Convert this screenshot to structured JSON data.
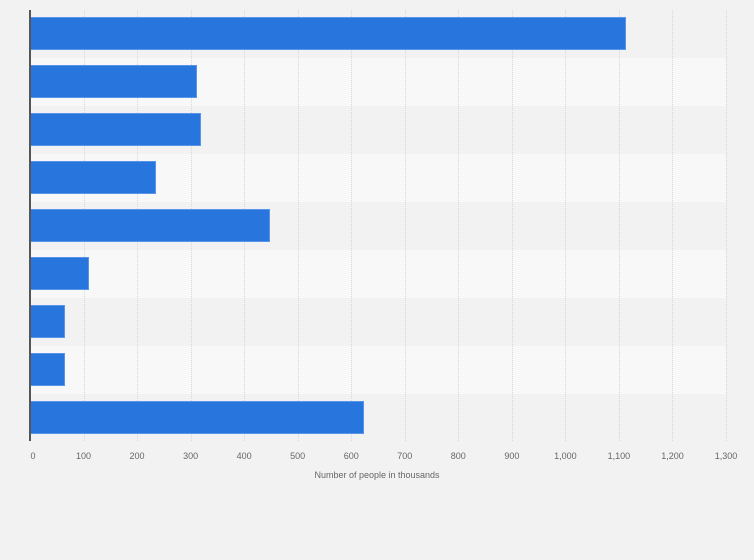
{
  "chart_data": {
    "type": "bar",
    "orientation": "horizontal",
    "title": "",
    "xlabel": "Number of people in thousands",
    "ylabel": "",
    "categories": [
      "",
      "",
      "",
      "",
      "",
      "",
      "",
      "",
      ""
    ],
    "values": [
      1113,
      312,
      319,
      236,
      449,
      110,
      66,
      65,
      624
    ],
    "xlim": [
      0,
      1300
    ],
    "xticks": [
      0,
      100,
      200,
      300,
      400,
      500,
      600,
      700,
      800,
      900,
      1000,
      1100,
      1200,
      1300
    ],
    "xtick_labels": [
      "0",
      "100",
      "200",
      "300",
      "400",
      "500",
      "600",
      "700",
      "800",
      "900",
      "1,000",
      "1,100",
      "1,200",
      "1,300"
    ],
    "grid": true,
    "legend": null,
    "bar_color": "#2876dd"
  },
  "axis": {
    "xlabel": "Number of people in thousands",
    "ticks": [
      "0",
      "100",
      "200",
      "300",
      "400",
      "500",
      "600",
      "700",
      "800",
      "900",
      "1,000",
      "1,100",
      "1,200",
      "1,300"
    ]
  }
}
